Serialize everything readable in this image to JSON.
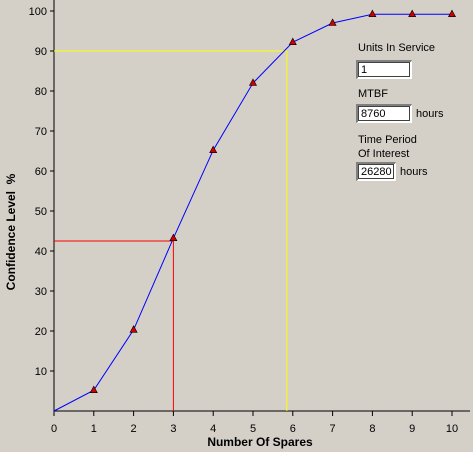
{
  "chart_data": {
    "type": "line",
    "xlabel": "Number Of Spares",
    "ylabel": "Confidence Level  %",
    "x": [
      0,
      1,
      2,
      3,
      4,
      5,
      6,
      7,
      8,
      9,
      10
    ],
    "xticks": [
      "0",
      "1",
      "2",
      "3",
      "4",
      "5",
      "6",
      "7",
      "8",
      "9",
      "10"
    ],
    "yticks": [
      "10",
      "20",
      "30",
      "40",
      "50",
      "60",
      "70",
      "80",
      "90",
      "100"
    ],
    "xlim": [
      0,
      10
    ],
    "ylim": [
      0,
      100
    ],
    "series": [
      {
        "values": [
          0,
          5.2,
          20.3,
          43.2,
          65.2,
          82.0,
          92.2,
          97.0,
          99.2,
          99.2,
          99.2
        ]
      }
    ],
    "reference_lines": {
      "yellow": {
        "x": 5.85,
        "y": 90
      },
      "red": {
        "x": 3,
        "y": 42.5
      }
    },
    "colors": {
      "line": "#0000ff",
      "marker": "#cc0000",
      "yellow": "#ffff00",
      "red": "#ff0000"
    }
  },
  "panel": {
    "units_label": "Units In Service",
    "units_value": "1",
    "mtbf_label": "MTBF",
    "mtbf_value": "8760",
    "mtbf_unit": "hours",
    "period_label_1": "Time Period",
    "period_label_2": "Of Interest",
    "period_value": "26280",
    "period_unit": "hours"
  }
}
